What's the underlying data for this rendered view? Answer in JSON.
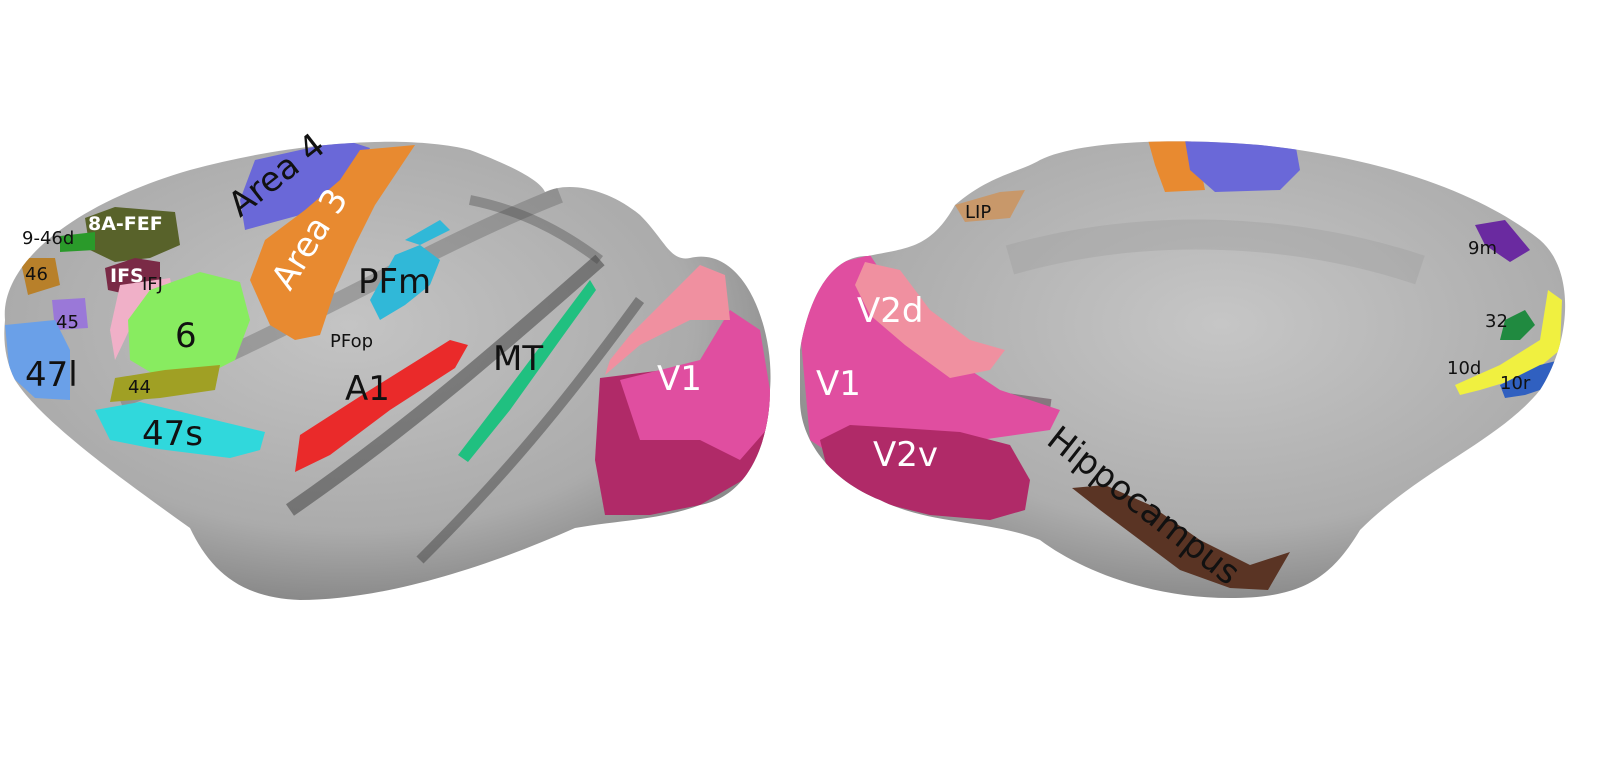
{
  "lateral": {
    "labels": {
      "area4": "Area 4",
      "area3": "Area 3",
      "fef": "8A-FEF",
      "a946d": "9-46d",
      "a46": "46",
      "ifs": "IFS",
      "ifj": "IFJ",
      "a45": "45",
      "a6": "6",
      "pfm": "PFm",
      "pfop": "PFop",
      "a47l": "47l",
      "a44": "44",
      "a47s": "47s",
      "a1": "A1",
      "mt": "MT",
      "v1": "V1"
    }
  },
  "medial": {
    "labels": {
      "lip": "LIP",
      "v2d": "V2d",
      "v1": "V1",
      "v2v": "V2v",
      "hippocampus": "Hippocampus",
      "a9m": "9m",
      "a32": "32",
      "a10d": "10d",
      "a10r": "10r"
    }
  },
  "colors": {
    "surface": "#b3b3b3",
    "area4": "#6a68d8",
    "area3": "#e88a30",
    "fef": "#58622a",
    "ifs": "#7a2a46",
    "ifj": "#f0b0c8",
    "a6": "#88ec60",
    "pfm": "#30b8d8",
    "a47s": "#30d8dc",
    "a47l": "#6aa0e8",
    "a44": "#a0a024",
    "a45": "#9a78d8",
    "a1": "#ea2a2a",
    "mt": "#20c080",
    "v1": "#e04ea0",
    "v2d": "#f090a0",
    "v2v": "#b02a68",
    "hippocampus": "#5a3424",
    "lip": "#c8986a",
    "a9m": "#6a2aa0",
    "a32": "#208a40",
    "a10d": "#f0f040",
    "a10r": "#3060c0"
  }
}
